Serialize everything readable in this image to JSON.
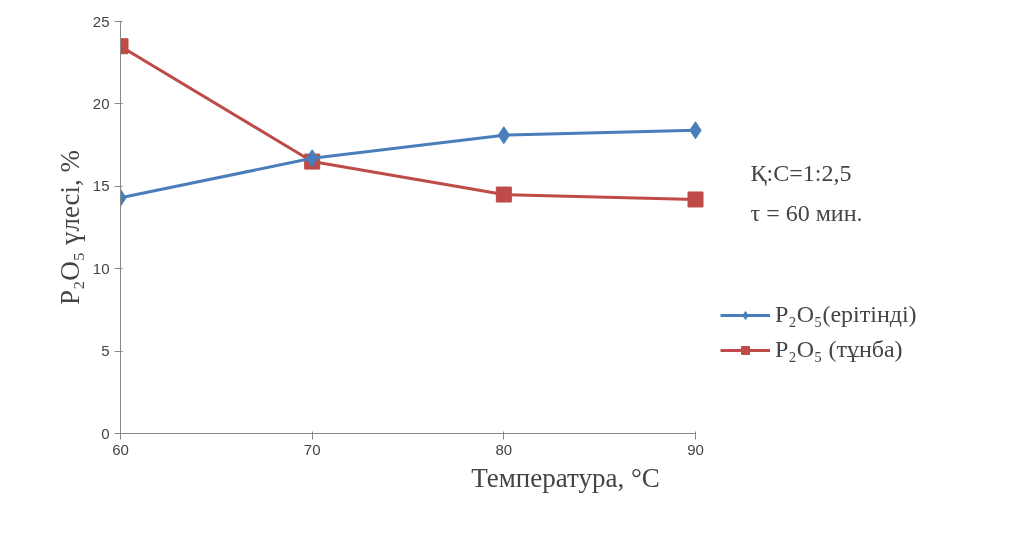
{
  "chart_data": {
    "type": "line",
    "xlabel": "Температура, °C",
    "ylabel": "P₂O₅ үлесі, %",
    "x": [
      60,
      70,
      80,
      90
    ],
    "series": [
      {
        "name": "P₂O₅(ерітінді)",
        "color": "#4a7ebb",
        "values": [
          14.3,
          16.7,
          18.1,
          18.4
        ],
        "marker": "diamond"
      },
      {
        "name": "P₂O₅ (тұнба)",
        "color": "#be4b48",
        "values": [
          23.5,
          16.5,
          14.5,
          14.2
        ],
        "marker": "square"
      }
    ],
    "xlim": [
      60,
      90
    ],
    "xticks": [
      60,
      70,
      80,
      90
    ],
    "ylim": [
      0,
      25
    ],
    "yticks": [
      0,
      5,
      10,
      15,
      20,
      25
    ],
    "grid": false,
    "legend": "right",
    "annotations": [
      "Қ:С=1:2,5",
      "τ = 60 мин."
    ]
  }
}
